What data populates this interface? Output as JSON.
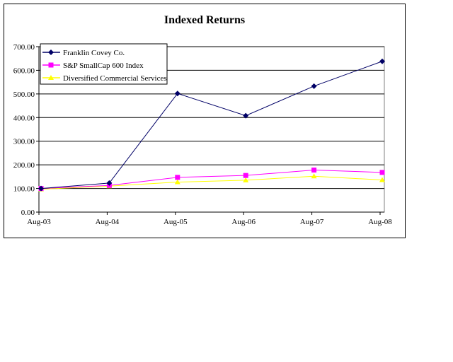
{
  "chart_data": {
    "type": "line",
    "title": "Indexed Returns",
    "xlabel": "",
    "ylabel": "",
    "categories": [
      "Aug-03",
      "Aug-04",
      "Aug-05",
      "Aug-06",
      "Aug-07",
      "Aug-08"
    ],
    "y_tick_labels": [
      "0.00",
      "100.00",
      "200.00",
      "300.00",
      "400.00",
      "500.00",
      "600.00",
      "700.00"
    ],
    "ylim": [
      0,
      700
    ],
    "grid": true,
    "legend_position": "top-left",
    "series": [
      {
        "name": "Franklin Covey Co.",
        "values": [
          100,
          123,
          502,
          408,
          533,
          638
        ],
        "color": "#000066",
        "marker": "diamond"
      },
      {
        "name": "S&P SmallCap 600 Index",
        "values": [
          100,
          113,
          147,
          155,
          178,
          168
        ],
        "color": "#ff00ff",
        "marker": "square"
      },
      {
        "name": "Diversified Commercial Services",
        "values": [
          97,
          110,
          127,
          135,
          152,
          136
        ],
        "color": "#ffff00",
        "marker": "triangle"
      }
    ]
  }
}
